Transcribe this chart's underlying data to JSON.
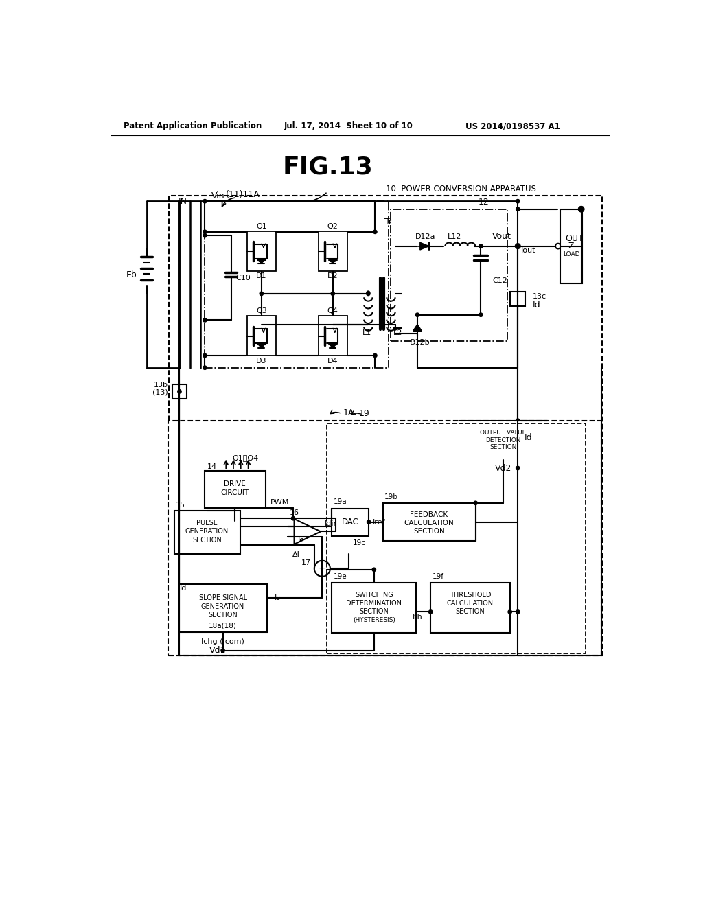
{
  "title": "FIG.13",
  "header_left": "Patent Application Publication",
  "header_center": "Jul. 17, 2014  Sheet 10 of 10",
  "header_right": "US 2014/0198537 A1",
  "bg_color": "#ffffff",
  "line_color": "#000000",
  "fig_width": 10.24,
  "fig_height": 13.2
}
